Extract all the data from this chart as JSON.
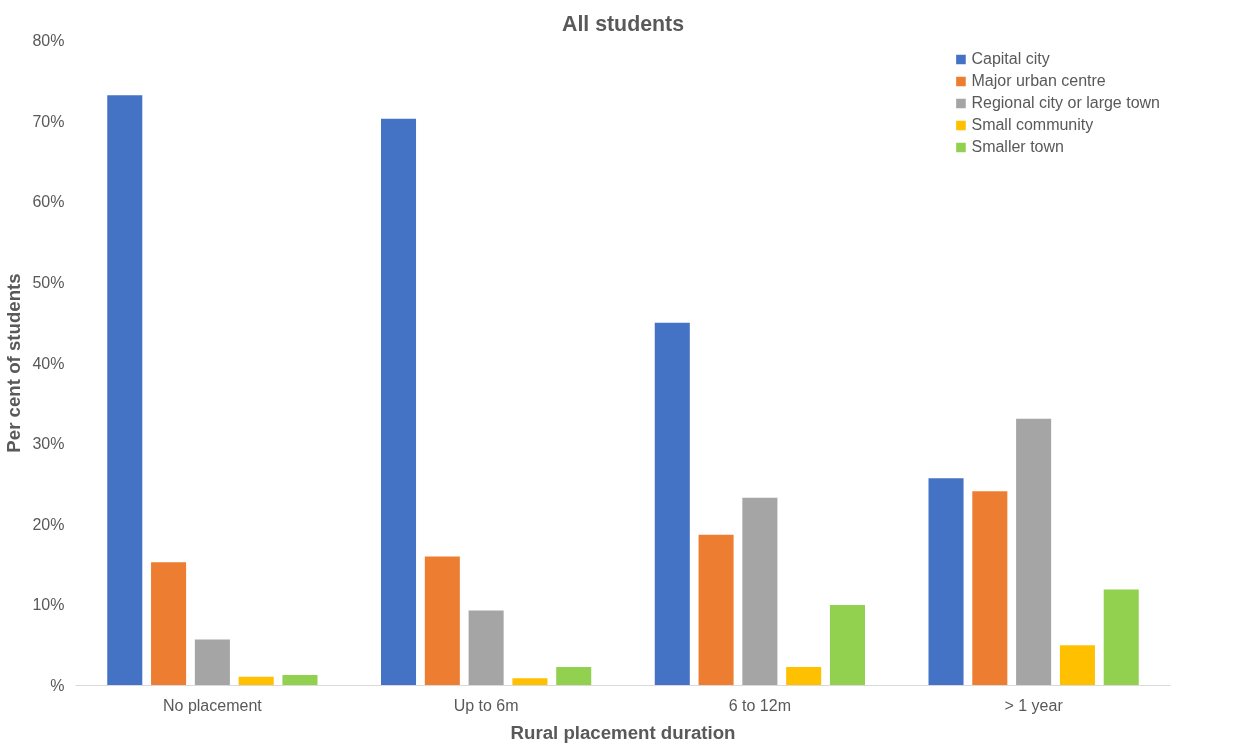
{
  "chart_data": {
    "type": "bar",
    "title": "All students",
    "xlabel": "Rural placement duration",
    "ylabel": "Per cent of students",
    "categories": [
      "No placement",
      "Up to 6m",
      "6 to 12m",
      "> 1 year"
    ],
    "series": [
      {
        "name": "Capital city",
        "color": "#4472c4",
        "values": [
          73.2,
          70.3,
          45.0,
          25.7
        ]
      },
      {
        "name": "Major urban centre",
        "color": "#ed7d31",
        "values": [
          15.3,
          16.0,
          18.7,
          24.1
        ]
      },
      {
        "name": "Regional city or large town",
        "color": "#a5a5a5",
        "values": [
          5.7,
          9.3,
          23.3,
          33.1
        ]
      },
      {
        "name": "Small community",
        "color": "#ffc000",
        "values": [
          1.1,
          0.9,
          2.3,
          5.0
        ]
      },
      {
        "name": "Smaller town",
        "color": "#92d050",
        "values": [
          1.3,
          2.3,
          10.0,
          11.9
        ]
      }
    ],
    "ylim": [
      0,
      80
    ],
    "yticks": [
      {
        "value": 0,
        "label": "%"
      },
      {
        "value": 10,
        "label": "10%"
      },
      {
        "value": 20,
        "label": "20%"
      },
      {
        "value": 30,
        "label": "30%"
      },
      {
        "value": 40,
        "label": "40%"
      },
      {
        "value": 50,
        "label": "50%"
      },
      {
        "value": 60,
        "label": "60%"
      },
      {
        "value": 70,
        "label": "70%"
      },
      {
        "value": 80,
        "label": "80%"
      }
    ],
    "grid": false,
    "legend": "top right"
  }
}
